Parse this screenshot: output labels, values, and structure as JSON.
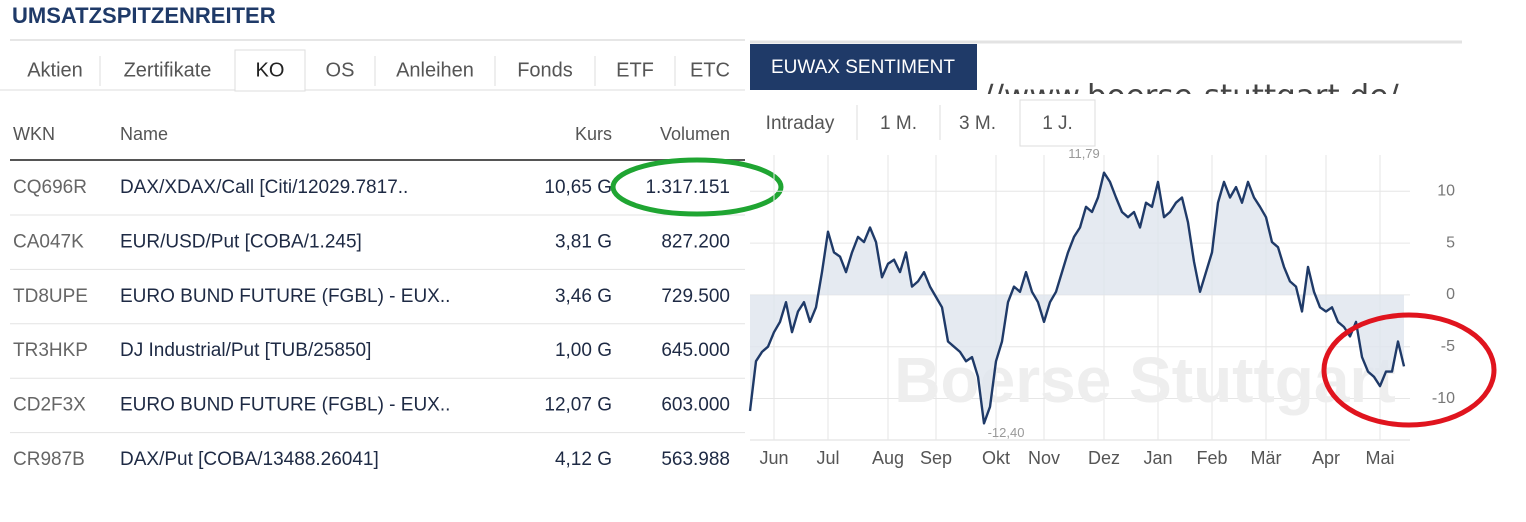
{
  "left": {
    "title": "UMSATZSPITZENREITER",
    "tabs": [
      "Aktien",
      "Zertifikate",
      "KO",
      "OS",
      "Anleihen",
      "Fonds",
      "ETF",
      "ETC"
    ],
    "active_tab": 2,
    "table": {
      "header": [
        "WKN",
        "Name",
        "Kurs",
        "Volumen"
      ],
      "rows": [
        [
          "CQ696R",
          "DAX/XDAX/Call [Citi/12029.7817..",
          "10,65 G",
          "1.317.151"
        ],
        [
          "CA047K",
          "EUR/USD/Put [COBA/1.245]",
          "3,81 G",
          "827.200"
        ],
        [
          "TD8UPE",
          "EURO BUND FUTURE (FGBL) - EUX..",
          "3,46 G",
          "729.500"
        ],
        [
          "TR3HKP",
          "DJ Industrial/Put [TUB/25850]",
          "1,00 G",
          "645.000"
        ],
        [
          "CD2F3X",
          "EURO BUND FUTURE (FGBL) - EUX..",
          "12,07 G",
          "603.000"
        ],
        [
          "CR987B",
          "DAX/Put [COBA/13488.26041]",
          "4,12 G",
          "563.988"
        ]
      ]
    }
  },
  "chart_data": {
    "type": "line",
    "title": "EUWAX SENTIMENT",
    "watermark_url": "//www.boerse-stuttgart.de/",
    "watermark": "Boerse Stuttgart",
    "tabs": [
      "Intraday",
      "1 M.",
      "3 M.",
      "1 J."
    ],
    "active_tab": 3,
    "color": "#1f3a68",
    "fill": "#dfe5ee",
    "grid": true,
    "xlim": [
      0,
      110
    ],
    "ylim": [
      -14,
      13.5
    ],
    "xticks": [
      {
        "value": 4,
        "label": "Jun"
      },
      {
        "value": 13,
        "label": "Jul"
      },
      {
        "value": 23,
        "label": "Aug"
      },
      {
        "value": 31,
        "label": "Sep"
      },
      {
        "value": 41,
        "label": "Okt"
      },
      {
        "value": 49,
        "label": "Nov"
      },
      {
        "value": 59,
        "label": "Dez"
      },
      {
        "value": 68,
        "label": "Jan"
      },
      {
        "value": 77,
        "label": "Feb"
      },
      {
        "value": 86,
        "label": "Mär"
      },
      {
        "value": 96,
        "label": "Apr"
      },
      {
        "value": 105,
        "label": "Mai"
      }
    ],
    "yticks": [
      10,
      5,
      0,
      -5,
      -10
    ],
    "max_label": {
      "value": 11.79,
      "label": "11,79"
    },
    "min_label": {
      "value": -12.4,
      "label": "-12,40"
    },
    "values": [
      -11.2,
      -6.4,
      -5.5,
      -5,
      -3.6,
      -2.6,
      -0.7,
      -3.6,
      -1.6,
      -0.7,
      -2.6,
      -1.2,
      2.2,
      6.1,
      4.1,
      3.7,
      2.2,
      4.1,
      5.6,
      5.1,
      6.5,
      5.1,
      1.7,
      3,
      3.4,
      2.2,
      4.1,
      0.8,
      1.3,
      2.2,
      0.8,
      -0.2,
      -1.2,
      -4.5,
      -5,
      -5.5,
      -6.4,
      -6,
      -7.9,
      -12.4,
      -10.8,
      -6.4,
      -4.5,
      -0.7,
      0.8,
      0.3,
      2.2,
      0.3,
      -0.7,
      -2.6,
      -0.7,
      0.3,
      2.2,
      4.1,
      5.6,
      6.5,
      8.5,
      8,
      9.4,
      11.79,
      10.9,
      9.4,
      8,
      7.5,
      8,
      6.5,
      8.9,
      8.5,
      10.9,
      7.5,
      8,
      8.9,
      9.4,
      7,
      3.2,
      0.3,
      2.2,
      4.1,
      8.9,
      10.9,
      9.4,
      10.4,
      8.9,
      10.9,
      9.4,
      8.5,
      7.5,
      5.1,
      4.6,
      2.7,
      1.3,
      0.8,
      -1.6,
      2.7,
      0.3,
      -1.2,
      -1.6,
      -1.2,
      -2.6,
      -3.1,
      -4,
      -2.6,
      -6,
      -7.4,
      -7.9,
      -8.8,
      -7.4,
      -7.4,
      -4.5,
      -6.9
    ]
  }
}
